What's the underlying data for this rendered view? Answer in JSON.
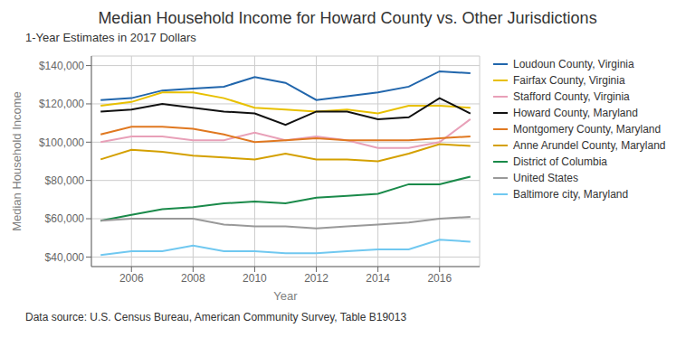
{
  "chart_data": {
    "type": "line",
    "title": "Median Household Income for Howard County vs. Other Jurisdictions",
    "subtitle": "1-Year Estimates in 2017 Dollars",
    "footnote": "Data source: U.S. Census Bureau, American Community Survey, Table B19013",
    "x_label": "Year",
    "y_label": "Median Household Income",
    "x": [
      2005,
      2006,
      2007,
      2008,
      2009,
      2010,
      2011,
      2012,
      2013,
      2014,
      2015,
      2016,
      2017
    ],
    "series": [
      {
        "name": "Loudoun County, Virginia",
        "color": "#2166ac",
        "values": [
          122000,
          123000,
          127000,
          128000,
          129000,
          134000,
          131000,
          122000,
          124000,
          126000,
          129000,
          137000,
          136000
        ]
      },
      {
        "name": "Fairfax County, Virginia",
        "color": "#e8c000",
        "values": [
          119000,
          121000,
          126000,
          126000,
          123000,
          118000,
          117000,
          116000,
          117000,
          115000,
          119000,
          119000,
          118000
        ]
      },
      {
        "name": "Stafford County, Virginia",
        "color": "#e8a0b8",
        "values": [
          100000,
          103000,
          103000,
          101000,
          101000,
          105000,
          101000,
          103000,
          101000,
          97000,
          97000,
          100000,
          112000
        ]
      },
      {
        "name": "Howard County, Maryland",
        "color": "#111111",
        "values": [
          116000,
          117000,
          120000,
          118000,
          116000,
          115000,
          109000,
          116000,
          116000,
          112000,
          113000,
          123000,
          115000
        ]
      },
      {
        "name": "Montgomery County, Maryland",
        "color": "#e07820",
        "values": [
          104000,
          108000,
          108000,
          107000,
          104000,
          100000,
          101000,
          102000,
          101000,
          101000,
          101000,
          102000,
          103000
        ]
      },
      {
        "name": "Anne Arundel County, Maryland",
        "color": "#d4a000",
        "values": [
          91000,
          96000,
          95000,
          93000,
          92000,
          91000,
          94000,
          91000,
          91000,
          90000,
          94000,
          99000,
          98000
        ]
      },
      {
        "name": "District of Columbia",
        "color": "#1a8a4a",
        "values": [
          59000,
          62000,
          65000,
          66000,
          68000,
          69000,
          68000,
          71000,
          72000,
          73000,
          78000,
          78000,
          82000
        ]
      },
      {
        "name": "United States",
        "color": "#999999",
        "values": [
          59000,
          60000,
          60000,
          60000,
          57000,
          56000,
          56000,
          55000,
          56000,
          57000,
          58000,
          60000,
          61000
        ]
      },
      {
        "name": "Baltimore city, Maryland",
        "color": "#70c8f0",
        "values": [
          41000,
          43000,
          43000,
          46000,
          43000,
          43000,
          42000,
          42000,
          43000,
          44000,
          44000,
          49000,
          48000
        ]
      }
    ],
    "xlim": [
      2004.7,
      2017.3
    ],
    "xticks": [
      2006,
      2008,
      2010,
      2012,
      2014,
      2016
    ],
    "ylim": [
      35000,
      145000
    ],
    "yticks": [
      {
        "value": 40000,
        "label": "$40,000"
      },
      {
        "value": 60000,
        "label": "$60,000"
      },
      {
        "value": 80000,
        "label": "$80,000"
      },
      {
        "value": 100000,
        "label": "$100,000"
      },
      {
        "value": 120000,
        "label": "$120,000"
      },
      {
        "value": 140000,
        "label": "$140,000"
      }
    ],
    "grid": true,
    "legend": "right"
  }
}
